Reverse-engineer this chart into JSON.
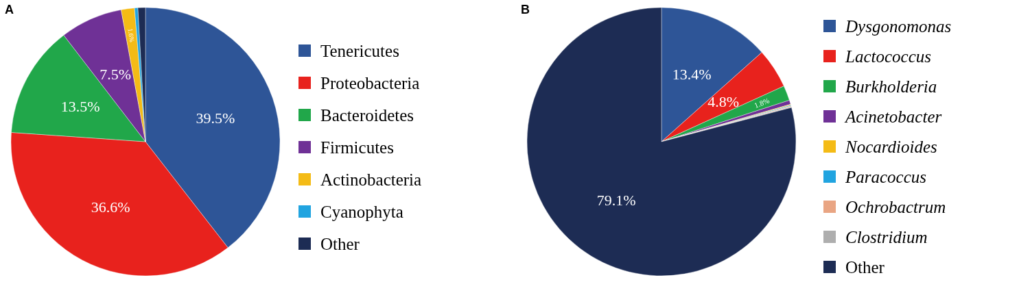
{
  "chart_data": [
    {
      "type": "pie",
      "title": "A",
      "categories": [
        "Tenericutes",
        "Proteobacteria",
        "Bacteroidetes",
        "Firmicutes",
        "Actinobacteria",
        "Cyanophyta",
        "Other"
      ],
      "values": [
        39.5,
        36.6,
        13.5,
        7.5,
        1.6,
        0.4,
        0.9
      ],
      "colors": [
        "#2e5597",
        "#e8221d",
        "#21a74a",
        "#6f3196",
        "#f4bb16",
        "#21a4e0",
        "#1d2c54"
      ],
      "value_labels": [
        "39.5%",
        "36.6%",
        "13.5%",
        "7.5%",
        "1.6%",
        null,
        null
      ],
      "legend": "right"
    },
    {
      "type": "pie",
      "title": "B",
      "categories": [
        "Dysgonomonas",
        "Lactococcus",
        "Burkholderia",
        "Acinetobacter",
        "Nocardioides",
        "Paracoccus",
        "Ochrobactrum",
        "Clostridium",
        "Other"
      ],
      "values": [
        13.4,
        4.8,
        1.8,
        0.5,
        0.1,
        0.1,
        0.1,
        0.1,
        79.1
      ],
      "colors": [
        "#2e5597",
        "#e8221d",
        "#21a74a",
        "#6f3196",
        "#f4bb16",
        "#21a4e0",
        "#e9a583",
        "#aeaeae",
        "#1d2c54"
      ],
      "value_labels": [
        "13.4%",
        "4.8%",
        "1.8%",
        null,
        null,
        null,
        null,
        null,
        "79.1%"
      ],
      "legend": "right"
    }
  ]
}
